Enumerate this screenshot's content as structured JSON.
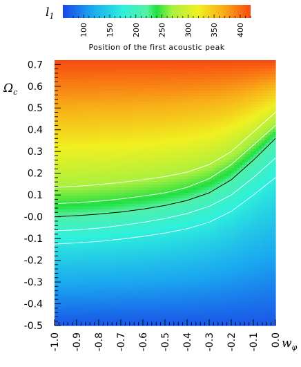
{
  "chart_data": {
    "type": "heatmap",
    "colorbar": {
      "symbol_main": "l",
      "symbol_sub": "1",
      "caption": "Position of the first acoustic peak",
      "range": [
        60,
        420
      ],
      "ticks": [
        100,
        150,
        200,
        250,
        300,
        350,
        400
      ],
      "tick_labels": [
        "100",
        "150",
        "200",
        "250",
        "300",
        "350",
        "400"
      ]
    },
    "x_axis": {
      "label_main": "w",
      "label_sub": "φ",
      "range": [
        -1.0,
        0.0
      ],
      "ticks": [
        -1.0,
        -0.9,
        -0.8,
        -0.7,
        -0.6,
        -0.5,
        -0.4,
        -0.3,
        -0.2,
        -0.1,
        0.0
      ],
      "tick_labels": [
        "-1.0",
        "-0.9",
        "-0.8",
        "-0.7",
        "-0.6",
        "-0.5",
        "-0.4",
        "-0.3",
        "-0.2",
        "-0.1",
        "0.0"
      ]
    },
    "y_axis": {
      "label_main": "Ω",
      "label_sub": "c",
      "range": [
        -0.5,
        0.72
      ],
      "ticks": [
        0.7,
        0.6,
        0.5,
        0.4,
        0.3,
        0.2,
        0.1,
        0.0,
        -0.1,
        -0.2,
        -0.3,
        -0.4,
        -0.5
      ],
      "tick_labels": [
        "0.7",
        "0.6",
        "0.5",
        "0.4",
        "0.3",
        "0.2",
        "0.1",
        "-0.0",
        "-0.1",
        "-0.2",
        "-0.3",
        "-0.4",
        "-0.5"
      ]
    },
    "field": {
      "x": [
        -1.0,
        -0.9,
        -0.8,
        -0.7,
        -0.6,
        -0.5,
        -0.4,
        -0.3,
        -0.2,
        -0.1,
        0.0
      ],
      "y_center": [
        0.0,
        0.005,
        0.012,
        0.022,
        0.035,
        0.052,
        0.075,
        0.11,
        0.17,
        0.26,
        0.36
      ],
      "peak_value_at_center": 220,
      "value_at_top": 420,
      "value_at_bottom": 70
    },
    "contours": [
      {
        "level": "center",
        "color": "black",
        "x": [
          -1.0,
          -0.9,
          -0.8,
          -0.7,
          -0.6,
          -0.5,
          -0.4,
          -0.3,
          -0.2,
          -0.1,
          0.0
        ],
        "y": [
          0.0,
          0.005,
          0.012,
          0.022,
          0.035,
          0.052,
          0.075,
          0.11,
          0.17,
          0.26,
          0.36
        ]
      },
      {
        "level": "upper-1",
        "color": "white",
        "x": [
          -1.0,
          -0.9,
          -0.8,
          -0.7,
          -0.6,
          -0.5,
          -0.4,
          -0.3,
          -0.2,
          -0.1,
          0.0
        ],
        "y": [
          0.06,
          0.065,
          0.072,
          0.082,
          0.095,
          0.11,
          0.135,
          0.175,
          0.24,
          0.33,
          0.42
        ]
      },
      {
        "level": "upper-2",
        "color": "white",
        "x": [
          -1.0,
          -0.9,
          -0.8,
          -0.7,
          -0.6,
          -0.5,
          -0.4,
          -0.3,
          -0.2,
          -0.1,
          0.0
        ],
        "y": [
          0.135,
          0.14,
          0.148,
          0.158,
          0.17,
          0.185,
          0.205,
          0.24,
          0.3,
          0.39,
          0.48
        ]
      },
      {
        "level": "lower-1",
        "color": "white",
        "x": [
          -1.0,
          -0.9,
          -0.8,
          -0.7,
          -0.6,
          -0.5,
          -0.4,
          -0.3,
          -0.2,
          -0.1,
          0.0
        ],
        "y": [
          -0.065,
          -0.06,
          -0.052,
          -0.04,
          -0.026,
          -0.008,
          0.015,
          0.048,
          0.1,
          0.18,
          0.27
        ]
      },
      {
        "level": "lower-2",
        "color": "white",
        "x": [
          -1.0,
          -0.9,
          -0.8,
          -0.7,
          -0.6,
          -0.5,
          -0.4,
          -0.3,
          -0.2,
          -0.1,
          0.0
        ],
        "y": [
          -0.125,
          -0.12,
          -0.113,
          -0.103,
          -0.09,
          -0.075,
          -0.055,
          -0.025,
          0.025,
          0.1,
          0.18
        ]
      }
    ]
  }
}
